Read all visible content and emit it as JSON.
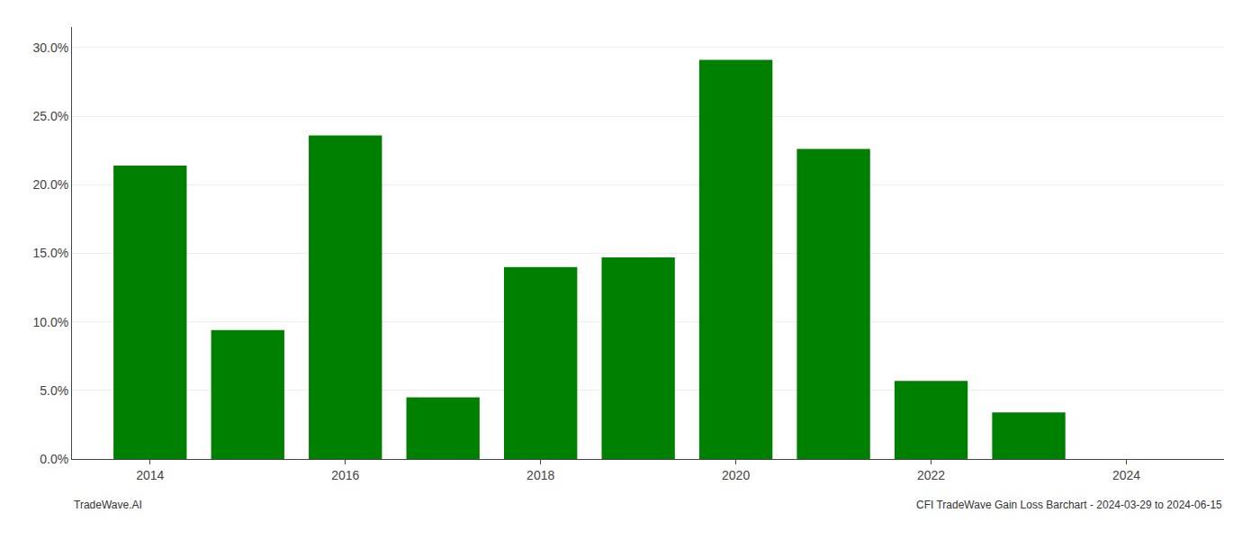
{
  "chart_data": {
    "type": "bar",
    "x": [
      2014,
      2015,
      2016,
      2017,
      2018,
      2019,
      2020,
      2021,
      2022,
      2023,
      2024
    ],
    "values": [
      0.214,
      0.094,
      0.236,
      0.045,
      0.14,
      0.147,
      0.291,
      0.226,
      0.057,
      0.034,
      0.0
    ],
    "color": "#008000",
    "xlim": [
      2013.2,
      2025.0
    ],
    "xticks": [
      2014,
      2016,
      2018,
      2020,
      2022,
      2024
    ],
    "ylim": [
      0.0,
      0.315
    ],
    "yticks": [
      {
        "value": 0.0,
        "label": "0.0%"
      },
      {
        "value": 0.05,
        "label": "5.0%"
      },
      {
        "value": 0.1,
        "label": "10.0%"
      },
      {
        "value": 0.15,
        "label": "15.0%"
      },
      {
        "value": 0.2,
        "label": "20.0%"
      },
      {
        "value": 0.25,
        "label": "25.0%"
      },
      {
        "value": 0.3,
        "label": "30.0%"
      }
    ],
    "grid": true,
    "annotations": [
      "TradeWave.AI",
      "CFI TradeWave Gain Loss Barchart - 2024-03-29 to 2024-06-15"
    ]
  }
}
